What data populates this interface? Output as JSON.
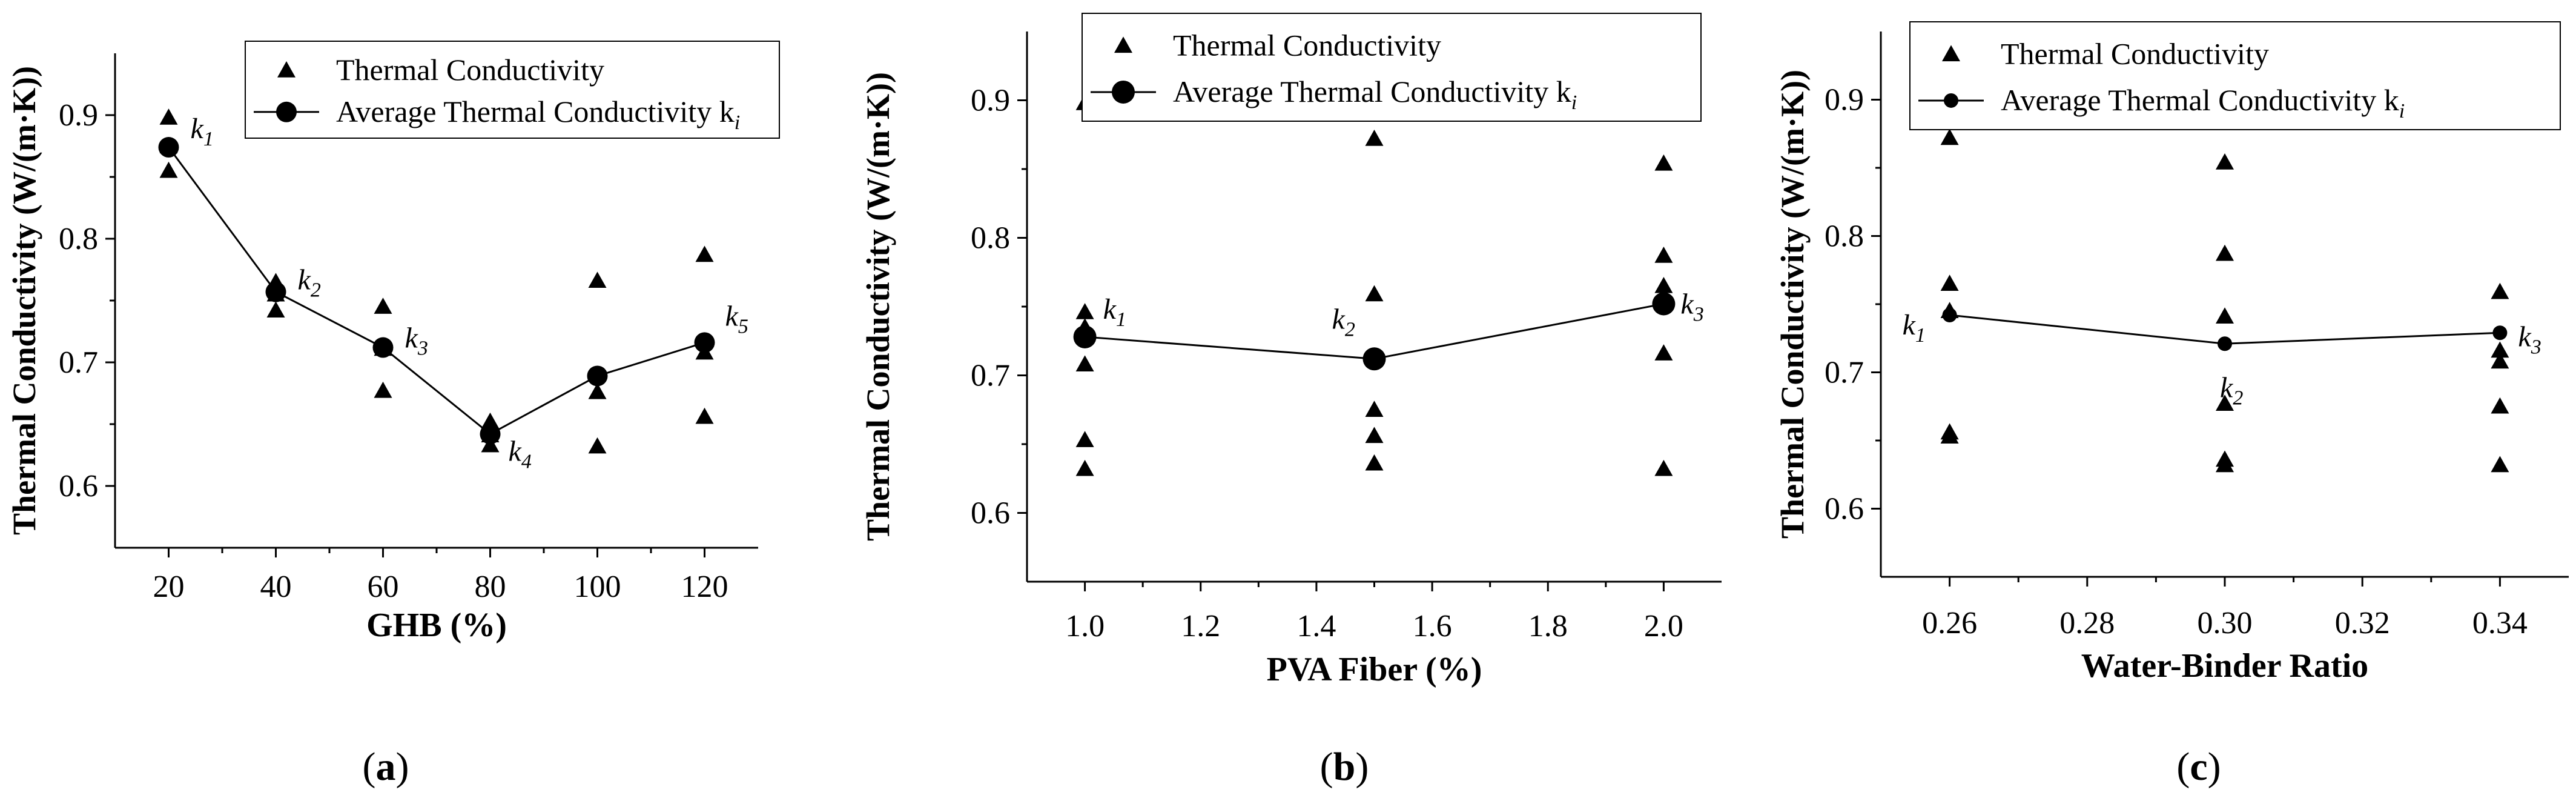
{
  "chart_data": [
    {
      "type": "scatter",
      "caption": "(a)",
      "caption_letter": "a",
      "xlabel": "GHB (%)",
      "ylabel": "Thermal Conductivity (W/(m·K))",
      "xlim": [
        10,
        130
      ],
      "ylim": [
        0.55,
        0.95
      ],
      "xticks": [
        20,
        40,
        60,
        80,
        100,
        120
      ],
      "xtick_labels": [
        "20",
        "40",
        "60",
        "80",
        "100",
        "120"
      ],
      "yticks": [
        0.6,
        0.7,
        0.8,
        0.9
      ],
      "ytick_labels": [
        "0.6",
        "0.7",
        "0.8",
        "0.9"
      ],
      "legend": [
        "Thermal Conductivity",
        "Average Thermal Conductivity k"
      ],
      "legend_sub": "i",
      "legend_placement": "top-right",
      "series": [
        {
          "name": "Thermal Conductivity",
          "marker": "triangle",
          "points": [
            [
              20,
              0.898
            ],
            [
              20,
              0.875
            ],
            [
              20,
              0.855
            ],
            [
              40,
              0.765
            ],
            [
              40,
              0.755
            ],
            [
              40,
              0.742
            ],
            [
              60,
              0.745
            ],
            [
              60,
              0.711
            ],
            [
              60,
              0.677
            ],
            [
              80,
              0.652
            ],
            [
              80,
              0.641
            ],
            [
              80,
              0.633
            ],
            [
              100,
              0.766
            ],
            [
              100,
              0.676
            ],
            [
              100,
              0.632
            ],
            [
              120,
              0.787
            ],
            [
              120,
              0.708
            ],
            [
              120,
              0.656
            ]
          ]
        },
        {
          "name": "Average Thermal Conductivity k_i",
          "marker": "circle",
          "points": [
            [
              20,
              0.874
            ],
            [
              40,
              0.757
            ],
            [
              60,
              0.712
            ],
            [
              80,
              0.642
            ],
            [
              100,
              0.689
            ],
            [
              120,
              0.716
            ]
          ]
        }
      ],
      "annotations": [
        {
          "x": 20,
          "y": 0.874,
          "base": "k",
          "sub": "1"
        },
        {
          "x": 40,
          "y": 0.757,
          "base": "k",
          "sub": "2"
        },
        {
          "x": 60,
          "y": 0.712,
          "base": "k",
          "sub": "3"
        },
        {
          "x": 80,
          "y": 0.642,
          "base": "k",
          "sub": "4"
        },
        {
          "x": 120,
          "y": 0.716,
          "base": "k",
          "sub": "5"
        }
      ]
    },
    {
      "type": "scatter",
      "caption": "(b)",
      "caption_letter": "b",
      "xlabel": "PVA Fiber (%)",
      "ylabel": "Thermal Conductivity (W/(m·K))",
      "xlim": [
        0.9,
        2.1
      ],
      "ylim": [
        0.55,
        0.95
      ],
      "xticks": [
        1.0,
        1.2,
        1.4,
        1.6,
        1.8,
        2.0
      ],
      "xtick_labels": [
        "1.0",
        "1.2",
        "1.4",
        "1.6",
        "1.8",
        "2.0"
      ],
      "yticks": [
        0.6,
        0.7,
        0.8,
        0.9
      ],
      "ytick_labels": [
        "0.6",
        "0.7",
        "0.8",
        "0.9"
      ],
      "legend": [
        "Thermal Conductivity",
        "Average Thermal Conductivity k"
      ],
      "legend_sub": "i",
      "legend_placement": "top-right",
      "series": [
        {
          "name": "Thermal Conductivity",
          "marker": "triangle",
          "points": [
            [
              1.0,
              0.898
            ],
            [
              1.0,
              0.746
            ],
            [
              1.0,
              0.735
            ],
            [
              1.0,
              0.708
            ],
            [
              1.0,
              0.653
            ],
            [
              1.0,
              0.632
            ],
            [
              1.5,
              0.872
            ],
            [
              1.5,
              0.759
            ],
            [
              1.5,
              0.712
            ],
            [
              1.5,
              0.675
            ],
            [
              1.5,
              0.656
            ],
            [
              1.5,
              0.636
            ],
            [
              2.0,
              0.854
            ],
            [
              2.0,
              0.787
            ],
            [
              2.0,
              0.765
            ],
            [
              2.0,
              0.716
            ],
            [
              2.0,
              0.632
            ]
          ]
        },
        {
          "name": "Average Thermal Conductivity k_i",
          "marker": "circle",
          "points": [
            [
              1.0,
              0.728
            ],
            [
              1.5,
              0.712
            ],
            [
              2.0,
              0.752
            ]
          ]
        }
      ],
      "annotations": [
        {
          "x": 1.0,
          "y": 0.728,
          "base": "k",
          "sub": "1"
        },
        {
          "x": 1.5,
          "y": 0.712,
          "base": "k",
          "sub": "2"
        },
        {
          "x": 2.0,
          "y": 0.752,
          "base": "k",
          "sub": "3"
        }
      ]
    },
    {
      "type": "scatter",
      "caption": "(c)",
      "caption_letter": "c",
      "xlabel": "Water-Binder Ratio",
      "ylabel": "Thermal Conductivity (W/(m·K))",
      "xlim": [
        0.25,
        0.35
      ],
      "ylim": [
        0.55,
        0.95
      ],
      "xticks": [
        0.26,
        0.28,
        0.3,
        0.32,
        0.34
      ],
      "xtick_labels": [
        "0.26",
        "0.28",
        "0.30",
        "0.32",
        "0.34"
      ],
      "yticks": [
        0.6,
        0.7,
        0.8,
        0.9
      ],
      "ytick_labels": [
        "0.6",
        "0.7",
        "0.8",
        "0.9"
      ],
      "legend": [
        "Thermal Conductivity",
        "Average Thermal Conductivity k"
      ],
      "legend_sub": "i",
      "legend_placement": "top-right",
      "series": [
        {
          "name": "Thermal Conductivity",
          "marker": "triangle",
          "points": [
            [
              0.26,
              0.872
            ],
            [
              0.26,
              0.765
            ],
            [
              0.26,
              0.745
            ],
            [
              0.26,
              0.656
            ],
            [
              0.26,
              0.653
            ],
            [
              0.3,
              0.854
            ],
            [
              0.3,
              0.787
            ],
            [
              0.3,
              0.741
            ],
            [
              0.3,
              0.677
            ],
            [
              0.3,
              0.636
            ],
            [
              0.3,
              0.632
            ],
            [
              0.34,
              0.759
            ],
            [
              0.34,
              0.716
            ],
            [
              0.34,
              0.708
            ],
            [
              0.34,
              0.675
            ],
            [
              0.34,
              0.632
            ]
          ]
        },
        {
          "name": "Average Thermal Conductivity k_i",
          "marker": "circle",
          "points": [
            [
              0.26,
              0.742
            ],
            [
              0.3,
              0.721
            ],
            [
              0.34,
              0.729
            ]
          ]
        }
      ],
      "annotations": [
        {
          "x": 0.26,
          "y": 0.742,
          "base": "k",
          "sub": "1"
        },
        {
          "x": 0.3,
          "y": 0.721,
          "base": "k",
          "sub": "2"
        },
        {
          "x": 0.34,
          "y": 0.729,
          "base": "k",
          "sub": "3"
        }
      ]
    }
  ],
  "colors": {
    "ink": "#000000",
    "background": "#ffffff"
  }
}
